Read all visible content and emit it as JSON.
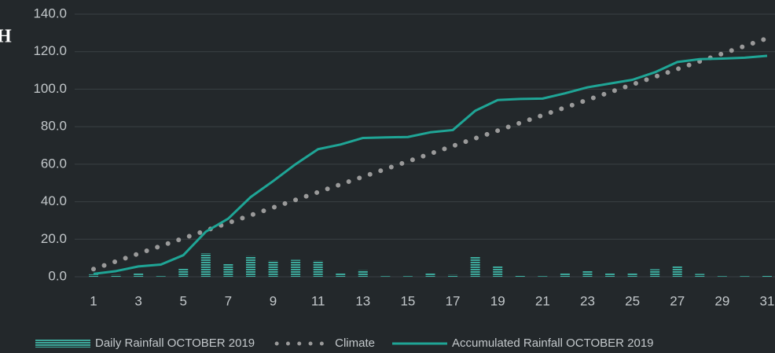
{
  "chart_data": {
    "type": "combo",
    "title": "H",
    "categories": [
      "1",
      null,
      "3",
      null,
      "5",
      null,
      "7",
      null,
      "9",
      null,
      "11",
      null,
      "13",
      null,
      "15",
      null,
      "17",
      null,
      "19",
      null,
      "21",
      null,
      "23",
      null,
      "25",
      null,
      "27",
      null,
      "29",
      null,
      "31"
    ],
    "series": [
      {
        "name": "Daily Rainfall OCTOBER 2019",
        "type": "bar",
        "color": "#3fb5a6",
        "values": [
          1.3,
          1,
          2,
          0.3,
          4.5,
          12.5,
          7,
          11,
          8.5,
          9,
          8.5,
          2,
          3.5,
          0.3,
          0.3,
          2,
          1,
          10.5,
          5.5,
          0.5,
          0.3,
          2,
          3,
          2,
          2,
          4,
          5.5,
          1.5,
          0.3,
          0.3,
          0.5
        ]
      },
      {
        "name": "Climate",
        "type": "dotted-line",
        "color": "#9a9a9a",
        "values": [
          4.1,
          8.2,
          12.3,
          16.4,
          20.5,
          24.6,
          28.7,
          32.8,
          36.9,
          41,
          45.1,
          49.2,
          53.3,
          57.4,
          61.5,
          65.6,
          69.7,
          73.8,
          77.9,
          82,
          86.1,
          90.2,
          94.3,
          98.4,
          102.5,
          106.6,
          110.7,
          114.8,
          118.9,
          123,
          127.1
        ]
      },
      {
        "name": "Accumulated Rainfall OCTOBER 2019",
        "type": "line",
        "color": "#1fa596",
        "values": [
          1.5,
          3,
          5.5,
          6.5,
          11.5,
          24,
          31,
          42.5,
          51,
          60,
          68,
          70.5,
          74,
          74.3,
          74.5,
          77,
          78.2,
          88.5,
          94.2,
          94.8,
          95,
          97.8,
          101,
          103,
          105,
          109,
          114.5,
          116,
          116.3,
          116.8,
          117.8
        ]
      }
    ],
    "ylim": [
      0,
      140
    ],
    "yticks": [
      {
        "value": 0,
        "label": "0.0"
      },
      {
        "value": 20,
        "label": "20.0"
      },
      {
        "value": 40,
        "label": "40.0"
      },
      {
        "value": 60,
        "label": "60.0"
      },
      {
        "value": 80,
        "label": "80.0"
      },
      {
        "value": 100,
        "label": "100.0"
      },
      {
        "value": 120,
        "label": "120.0"
      },
      {
        "value": 140,
        "label": "140.0"
      }
    ],
    "grid": true,
    "legend": "bottom"
  }
}
